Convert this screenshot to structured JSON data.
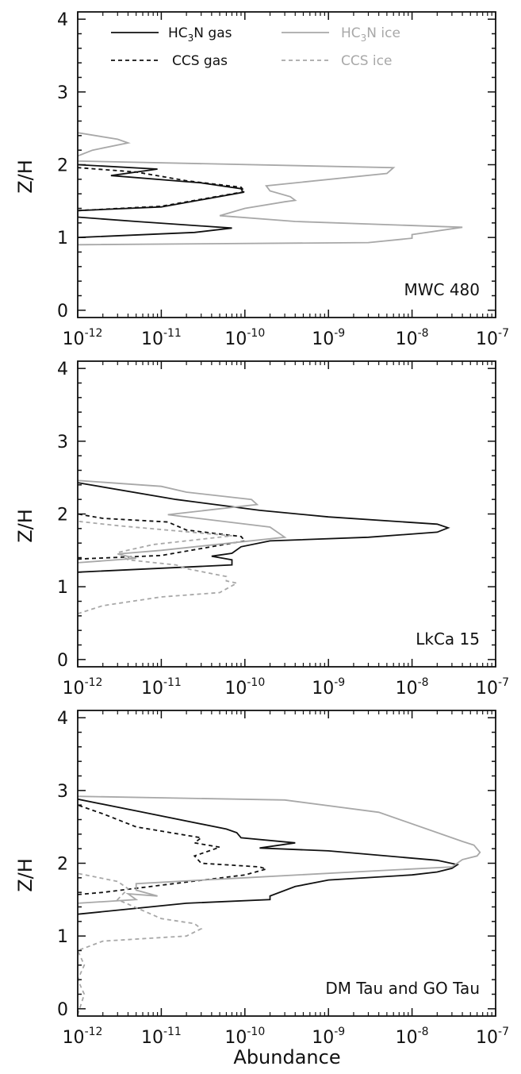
{
  "figure": {
    "xlabel": "Abundance",
    "x_tick_labels": [
      {
        "base": "10",
        "exp": "-12"
      },
      {
        "base": "10",
        "exp": "-11"
      },
      {
        "base": "10",
        "exp": "-10"
      },
      {
        "base": "10",
        "exp": "-9"
      },
      {
        "base": "10",
        "exp": "-8"
      },
      {
        "base": "10",
        "exp": "-7"
      }
    ],
    "y_tick_labels": [
      "0",
      "1",
      "2",
      "3",
      "4"
    ]
  },
  "legend": {
    "entries": [
      {
        "key": "hc3n_gas",
        "main": "HC",
        "sub": "3",
        "rest": "N gas"
      },
      {
        "key": "ccs_gas",
        "main": "CCS gas",
        "sub": "",
        "rest": ""
      },
      {
        "key": "hc3n_ice",
        "main": "HC",
        "sub": "3",
        "rest": "N ice"
      },
      {
        "key": "ccs_ice",
        "main": "CCS ice",
        "sub": "",
        "rest": ""
      }
    ]
  },
  "colors": {
    "gas": "#111111",
    "ice": "#a8a8a8",
    "axes": "#111111"
  },
  "chart_data": [
    {
      "type": "line",
      "title": "MWC 480",
      "xlabel": "",
      "ylabel": "Z/H",
      "x_scale": "log",
      "xlim": [
        1e-12,
        1e-07
      ],
      "ylim": [
        -0.1,
        4.1
      ],
      "series": [
        {
          "key": "hc3n_gas",
          "name": "HC3N gas",
          "style": "solid",
          "color": "#111111",
          "points": [
            [
              1e-12,
              1.0
            ],
            [
              2.5e-11,
              1.07
            ],
            [
              7e-11,
              1.13
            ],
            [
              5e-12,
              1.22
            ],
            [
              1e-12,
              1.28
            ],
            [
              1e-12,
              1.37
            ],
            [
              1e-11,
              1.42
            ],
            [
              9.5e-11,
              1.62
            ],
            [
              9e-11,
              1.67
            ],
            [
              3e-11,
              1.75
            ],
            [
              2.5e-12,
              1.85
            ],
            [
              9e-12,
              1.94
            ],
            [
              1e-12,
              2.0
            ]
          ]
        },
        {
          "key": "ccs_gas",
          "name": "CCS gas",
          "style": "dashed",
          "color": "#111111",
          "points": [
            [
              1e-12,
              1.37
            ],
            [
              1e-11,
              1.43
            ],
            [
              1e-10,
              1.63
            ],
            [
              9e-11,
              1.69
            ],
            [
              2e-11,
              1.78
            ],
            [
              5e-12,
              1.9
            ],
            [
              1e-12,
              1.96
            ]
          ]
        },
        {
          "key": "hc3n_ice",
          "name": "HC3N ice",
          "style": "solid",
          "color": "#a8a8a8",
          "points": [
            [
              1e-12,
              0.9
            ],
            [
              3e-09,
              0.93
            ],
            [
              1e-08,
              0.99
            ],
            [
              1e-08,
              1.04
            ],
            [
              4e-08,
              1.14
            ],
            [
              4e-10,
              1.22
            ],
            [
              5e-11,
              1.3
            ],
            [
              1e-10,
              1.4
            ],
            [
              3e-10,
              1.49
            ],
            [
              4e-10,
              1.51
            ],
            [
              3.5e-10,
              1.56
            ],
            [
              2e-10,
              1.64
            ],
            [
              1.8e-10,
              1.71
            ],
            [
              5e-09,
              1.88
            ],
            [
              6e-09,
              1.96
            ],
            [
              1e-12,
              2.05
            ],
            [
              1e-12,
              2.12
            ],
            [
              1.5e-12,
              2.2
            ],
            [
              4e-12,
              2.3
            ],
            [
              3e-12,
              2.35
            ],
            [
              1e-12,
              2.44
            ]
          ]
        },
        {
          "key": "ccs_ice",
          "name": "CCS ice",
          "style": "dashed",
          "color": "#a8a8a8",
          "points": []
        }
      ]
    },
    {
      "type": "line",
      "title": "LkCa 15",
      "xlabel": "",
      "ylabel": "Z/H",
      "x_scale": "log",
      "xlim": [
        1e-12,
        1e-07
      ],
      "ylim": [
        -0.1,
        4.1
      ],
      "series": [
        {
          "key": "hc3n_gas",
          "name": "HC3N gas",
          "style": "solid",
          "color": "#111111",
          "points": [
            [
              1e-12,
              1.2
            ],
            [
              7e-11,
              1.3
            ],
            [
              7e-11,
              1.37
            ],
            [
              4e-11,
              1.42
            ],
            [
              7e-11,
              1.46
            ],
            [
              9e-11,
              1.55
            ],
            [
              2e-10,
              1.63
            ],
            [
              3e-09,
              1.68
            ],
            [
              2e-08,
              1.75
            ],
            [
              2.7e-08,
              1.81
            ],
            [
              2e-08,
              1.86
            ],
            [
              1e-09,
              1.96
            ],
            [
              1.5e-10,
              2.05
            ],
            [
              1.5e-11,
              2.2
            ],
            [
              1e-12,
              2.43
            ]
          ]
        },
        {
          "key": "ccs_gas",
          "name": "CCS gas",
          "style": "dashed",
          "color": "#111111",
          "points": [
            [
              1e-12,
              1.38
            ],
            [
              1e-11,
              1.43
            ],
            [
              1e-10,
              1.63
            ],
            [
              9e-11,
              1.69
            ],
            [
              2e-11,
              1.78
            ],
            [
              1.2e-11,
              1.89
            ],
            [
              2e-12,
              1.94
            ],
            [
              1e-12,
              2.0
            ]
          ]
        },
        {
          "key": "hc3n_ice",
          "name": "HC3N ice",
          "style": "solid",
          "color": "#a8a8a8",
          "points": [
            [
              1e-12,
              1.33
            ],
            [
              5e-12,
              1.39
            ],
            [
              3e-12,
              1.45
            ],
            [
              1e-11,
              1.5
            ],
            [
              3e-10,
              1.68
            ],
            [
              2e-10,
              1.82
            ],
            [
              1.2e-11,
              1.99
            ],
            [
              1.4e-10,
              2.13
            ],
            [
              1.2e-10,
              2.2
            ],
            [
              2e-11,
              2.3
            ],
            [
              1e-11,
              2.38
            ],
            [
              1e-12,
              2.46
            ]
          ]
        },
        {
          "key": "ccs_ice",
          "name": "CCS ice",
          "style": "dashed",
          "color": "#a8a8a8",
          "points": [
            [
              1e-12,
              0.63
            ],
            [
              2e-12,
              0.74
            ],
            [
              1e-11,
              0.86
            ],
            [
              5e-11,
              0.92
            ],
            [
              8e-11,
              1.05
            ],
            [
              6e-11,
              1.08
            ],
            [
              6e-11,
              1.14
            ],
            [
              2e-11,
              1.25
            ],
            [
              1.5e-11,
              1.3
            ],
            [
              4e-12,
              1.37
            ],
            [
              3e-12,
              1.47
            ],
            [
              8e-12,
              1.58
            ],
            [
              7e-11,
              1.7
            ],
            [
              3e-12,
              1.84
            ],
            [
              1e-12,
              1.9
            ]
          ]
        }
      ]
    },
    {
      "type": "line",
      "title": "DM Tau and GO Tau",
      "xlabel": "Abundance",
      "ylabel": "Z/H",
      "x_scale": "log",
      "xlim": [
        1e-12,
        1e-07
      ],
      "ylim": [
        -0.1,
        4.1
      ],
      "series": [
        {
          "key": "hc3n_gas",
          "name": "HC3N gas",
          "style": "solid",
          "color": "#111111",
          "points": [
            [
              1e-12,
              1.3
            ],
            [
              2e-11,
              1.45
            ],
            [
              2e-10,
              1.5
            ],
            [
              2e-10,
              1.55
            ],
            [
              4e-10,
              1.68
            ],
            [
              1e-09,
              1.77
            ],
            [
              1e-08,
              1.84
            ],
            [
              2e-08,
              1.88
            ],
            [
              3e-08,
              1.93
            ],
            [
              3.5e-08,
              1.98
            ],
            [
              2e-08,
              2.04
            ],
            [
              1e-09,
              2.17
            ],
            [
              1.5e-10,
              2.21
            ],
            [
              4e-10,
              2.28
            ],
            [
              9e-11,
              2.35
            ],
            [
              8e-11,
              2.42
            ],
            [
              6e-11,
              2.47
            ],
            [
              5e-12,
              2.72
            ],
            [
              1e-12,
              2.88
            ]
          ]
        },
        {
          "key": "ccs_gas",
          "name": "CCS gas",
          "style": "dashed",
          "color": "#111111",
          "points": [
            [
              1e-12,
              1.57
            ],
            [
              2e-12,
              1.6
            ],
            [
              1e-10,
              1.84
            ],
            [
              1.8e-10,
              1.92
            ],
            [
              1.5e-10,
              1.95
            ],
            [
              3e-11,
              2.0
            ],
            [
              2.5e-11,
              2.1
            ],
            [
              5e-11,
              2.22
            ],
            [
              2.5e-11,
              2.28
            ],
            [
              3e-11,
              2.35
            ],
            [
              5e-12,
              2.5
            ],
            [
              2e-12,
              2.68
            ],
            [
              1e-12,
              2.8
            ]
          ]
        },
        {
          "key": "hc3n_ice",
          "name": "HC3N ice",
          "style": "solid",
          "color": "#a8a8a8",
          "points": [
            [
              1e-12,
              1.45
            ],
            [
              5e-12,
              1.5
            ],
            [
              4e-12,
              1.58
            ],
            [
              9e-12,
              1.55
            ],
            [
              5e-12,
              1.63
            ],
            [
              5e-12,
              1.72
            ],
            [
              1e-10,
              1.8
            ],
            [
              2e-09,
              1.88
            ],
            [
              3e-08,
              1.95
            ],
            [
              4e-08,
              2.05
            ],
            [
              6e-08,
              2.1
            ],
            [
              6.5e-08,
              2.15
            ],
            [
              5.5e-08,
              2.25
            ],
            [
              4e-08,
              2.3
            ],
            [
              4e-09,
              2.7
            ],
            [
              3e-10,
              2.87
            ],
            [
              1e-12,
              2.92
            ]
          ]
        },
        {
          "key": "ccs_ice",
          "name": "CCS ice",
          "style": "dashed",
          "color": "#a8a8a8",
          "points": [
            [
              1e-12,
              -0.08
            ],
            [
              1.2e-12,
              0.2
            ],
            [
              1e-12,
              0.4
            ],
            [
              1.2e-12,
              0.6
            ],
            [
              1e-12,
              0.8
            ],
            [
              2e-12,
              0.93
            ],
            [
              2e-11,
              1.0
            ],
            [
              3e-11,
              1.1
            ],
            [
              2.5e-11,
              1.17
            ],
            [
              1e-11,
              1.24
            ],
            [
              3e-12,
              1.5
            ],
            [
              4e-12,
              1.65
            ],
            [
              3e-12,
              1.75
            ],
            [
              1e-12,
              1.86
            ]
          ]
        }
      ]
    }
  ]
}
